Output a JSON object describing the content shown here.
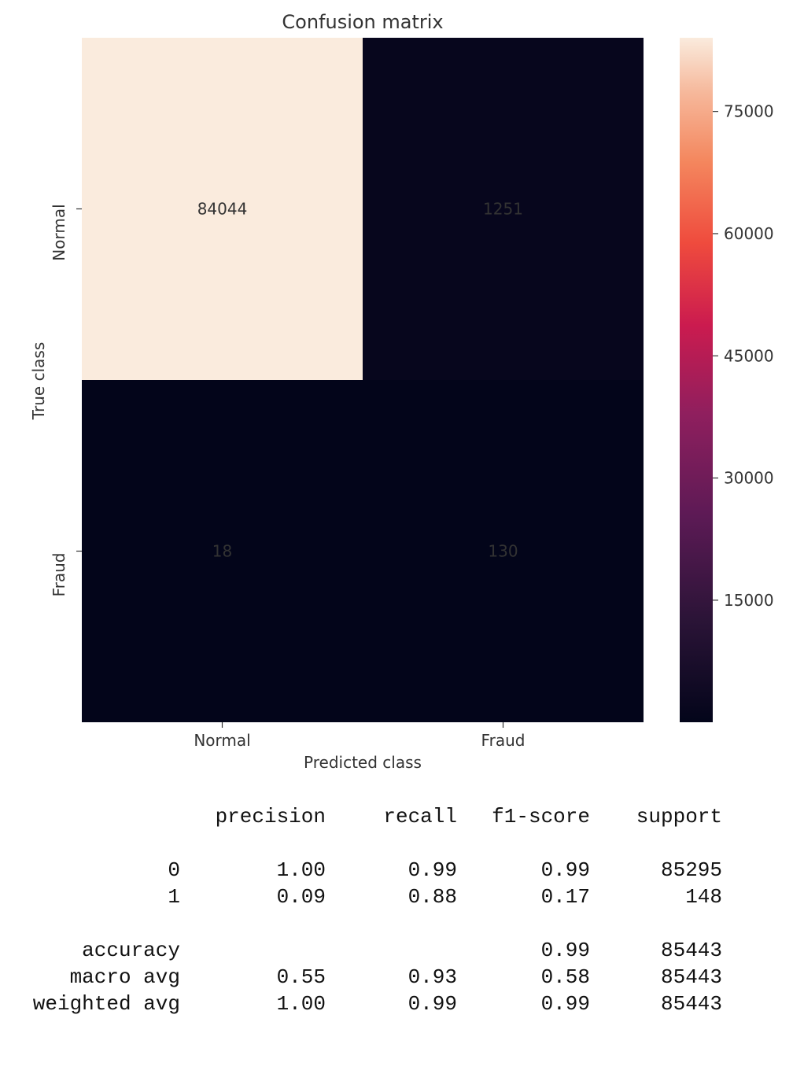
{
  "chart_data": {
    "type": "heatmap",
    "title": "Confusion matrix",
    "xlabel": "Predicted class",
    "ylabel": "True class",
    "x_categories": [
      "Normal",
      "Fraud"
    ],
    "y_categories": [
      "Normal",
      "Fraud"
    ],
    "values": [
      [
        84044,
        1251
      ],
      [
        18,
        130
      ]
    ],
    "cell_labels": [
      [
        "84044",
        "1251"
      ],
      [
        "18",
        "130"
      ]
    ],
    "colormap": "rocket",
    "vmin": 18,
    "vmax": 84044,
    "colorbar_ticks": [
      15000,
      30000,
      45000,
      60000,
      75000
    ],
    "colorbar_tick_labels": [
      "15000",
      "30000",
      "45000",
      "60000",
      "75000"
    ],
    "colors": {
      "low": "#03051a",
      "high": "#faebdd"
    }
  },
  "report": {
    "header": [
      "precision",
      "recall",
      "f1-score",
      "support"
    ],
    "rows": [
      [
        "0",
        "1.00",
        "0.99",
        "0.99",
        "85295"
      ],
      [
        "1",
        "0.09",
        "0.88",
        "0.17",
        "148"
      ],
      [
        "",
        "",
        "",
        "",
        ""
      ],
      [
        "accuracy",
        "",
        "",
        "0.99",
        "85443"
      ],
      [
        "macro avg",
        "0.55",
        "0.93",
        "0.58",
        "85443"
      ],
      [
        "weighted avg",
        "1.00",
        "0.99",
        "0.99",
        "85443"
      ]
    ]
  }
}
